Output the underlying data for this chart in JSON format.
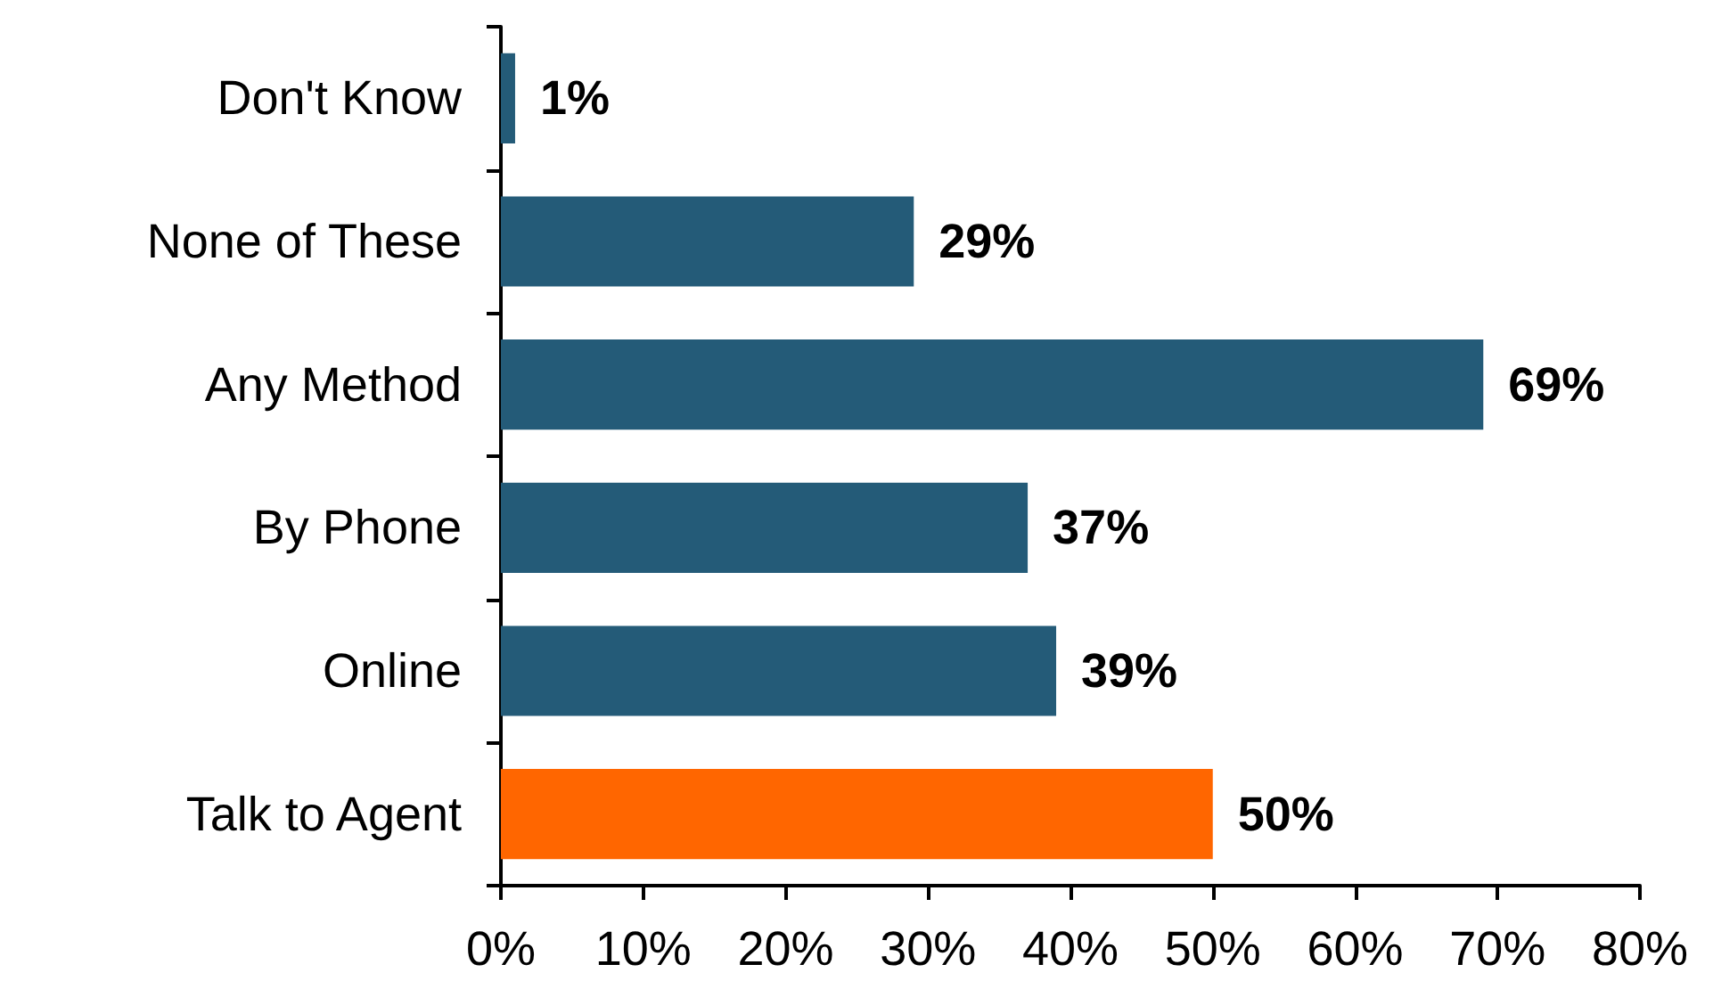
{
  "chart_data": {
    "type": "bar",
    "orientation": "horizontal",
    "categories": [
      "Don't Know",
      "None of These",
      "Any Method",
      "By Phone",
      "Online",
      "Talk to Agent"
    ],
    "values": [
      1,
      29,
      69,
      37,
      39,
      50
    ],
    "colors": [
      "#245b78",
      "#245b78",
      "#245b78",
      "#245b78",
      "#245b78",
      "#ff6600"
    ],
    "value_labels": [
      "1%",
      "29%",
      "69%",
      "37%",
      "39%",
      "50%"
    ],
    "xlim": [
      0,
      80
    ],
    "xticks": [
      {
        "value": 0,
        "label": "0%"
      },
      {
        "value": 10,
        "label": "10%"
      },
      {
        "value": 20,
        "label": "20%"
      },
      {
        "value": 30,
        "label": "30%"
      },
      {
        "value": 40,
        "label": "40%"
      },
      {
        "value": 50,
        "label": "50%"
      },
      {
        "value": 60,
        "label": "60%"
      },
      {
        "value": 70,
        "label": "70%"
      },
      {
        "value": 80,
        "label": "80%"
      }
    ],
    "grid": false
  }
}
